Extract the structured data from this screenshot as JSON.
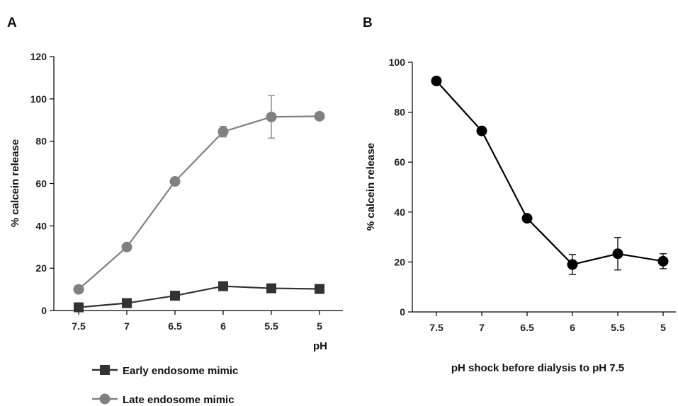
{
  "panel_labels": [
    "A",
    "B"
  ],
  "legend": {
    "early": "Early endosome mimic",
    "late": "Late endosome mimic"
  },
  "colors": {
    "early": "#333333",
    "late": "#808080",
    "panel_b": "#000000",
    "axis": "#000000"
  },
  "chart_data": [
    {
      "panel": "A",
      "type": "line",
      "title": "",
      "xlabel": "pH",
      "ylabel": "% calcein release",
      "categories": [
        "7.5",
        "7",
        "6.5",
        "6",
        "5.5",
        "5"
      ],
      "ylim": [
        0,
        120
      ],
      "yticks": [
        0,
        20,
        40,
        60,
        80,
        100,
        120
      ],
      "grid": false,
      "legend_position": "bottom",
      "series": [
        {
          "name": "Early endosome mimic",
          "marker": "square",
          "values": [
            1.5,
            3.5,
            7,
            11.5,
            10.5,
            10.2
          ],
          "errors": [
            0.5,
            0.8,
            1,
            1.5,
            1.2,
            1
          ]
        },
        {
          "name": "Late endosome mimic",
          "marker": "circle",
          "values": [
            10,
            30,
            61,
            84.5,
            91.5,
            91.8
          ],
          "errors": [
            0,
            0,
            0,
            2.5,
            10,
            0
          ]
        }
      ]
    },
    {
      "panel": "B",
      "type": "line",
      "title": "",
      "xlabel": "pH shock before dialysis to pH 7.5",
      "ylabel": "% calcein release",
      "categories": [
        "7.5",
        "7",
        "6.5",
        "6",
        "5.5",
        "5"
      ],
      "ylim": [
        0,
        100
      ],
      "yticks": [
        0,
        20,
        40,
        60,
        80,
        100
      ],
      "grid": false,
      "series": [
        {
          "marker": "circle",
          "values": [
            92.5,
            72.5,
            37.5,
            19,
            23.3,
            20.3
          ],
          "errors": [
            0,
            0,
            0,
            4,
            6.5,
            3
          ]
        }
      ]
    }
  ]
}
